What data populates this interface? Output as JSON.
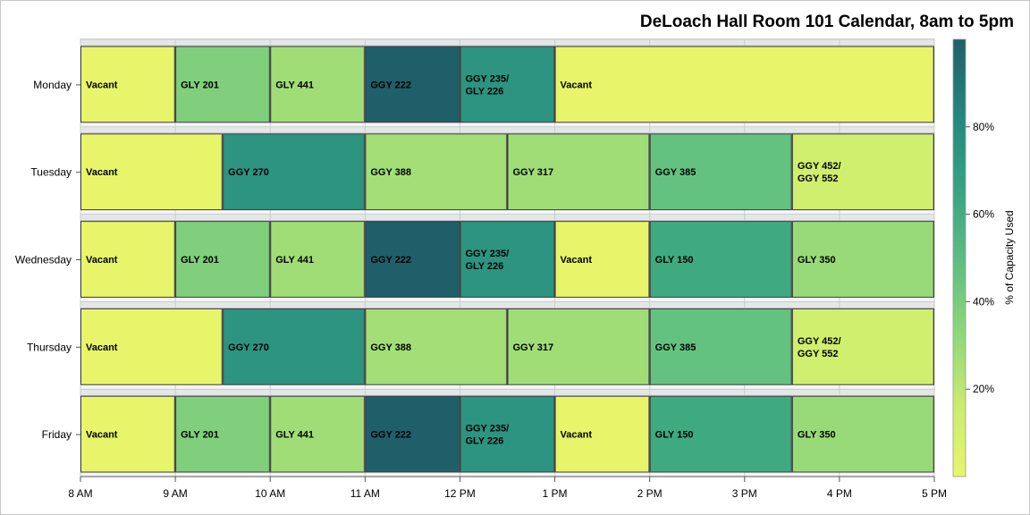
{
  "chart_data": {
    "type": "timeline-heatmap",
    "title": "DeLoach Hall Room 101 Calendar, 8am to 5pm",
    "x_ticks": [
      "8 AM",
      "9 AM",
      "10 AM",
      "11 AM",
      "12 PM",
      "1 PM",
      "2 PM",
      "3 PM",
      "4 PM",
      "5 PM"
    ],
    "x_range_hours": [
      8,
      17
    ],
    "colorbar": {
      "label": "% of Capacity Used",
      "ticks": [
        "20%",
        "40%",
        "60%",
        "80%"
      ],
      "tick_values": [
        20,
        40,
        60,
        80
      ],
      "range": [
        0,
        100
      ],
      "colors": [
        "#e8f56a",
        "#c8ec70",
        "#8dd67a",
        "#5bbd82",
        "#34a282",
        "#23857e",
        "#1f5f6a"
      ]
    },
    "days": [
      {
        "name": "Monday",
        "blocks": [
          {
            "start": 8,
            "end": 9,
            "label": "Vacant",
            "pct": 0
          },
          {
            "start": 9,
            "end": 10,
            "label": "GLY 201",
            "pct": 38
          },
          {
            "start": 10,
            "end": 11,
            "label": "GLY 441",
            "pct": 28
          },
          {
            "start": 11,
            "end": 12,
            "label": "GGY 222",
            "pct": 100
          },
          {
            "start": 12,
            "end": 13,
            "label": "GGY 235/\nGLY 226",
            "pct": 75
          },
          {
            "start": 13,
            "end": 17,
            "label": "Vacant",
            "pct": 0
          }
        ]
      },
      {
        "name": "Tuesday",
        "blocks": [
          {
            "start": 8,
            "end": 9.5,
            "label": "Vacant",
            "pct": 0
          },
          {
            "start": 9.5,
            "end": 11,
            "label": "GGY 270",
            "pct": 75
          },
          {
            "start": 11,
            "end": 12.5,
            "label": "GGY 388",
            "pct": 27
          },
          {
            "start": 12.5,
            "end": 14,
            "label": "GGY 317",
            "pct": 28
          },
          {
            "start": 14,
            "end": 15.5,
            "label": "GGY 385",
            "pct": 47
          },
          {
            "start": 15.5,
            "end": 17,
            "label": "GGY 452/\nGGY 552",
            "pct": 12
          }
        ]
      },
      {
        "name": "Wednesday",
        "blocks": [
          {
            "start": 8,
            "end": 9,
            "label": "Vacant",
            "pct": 0
          },
          {
            "start": 9,
            "end": 10,
            "label": "GLY 201",
            "pct": 38
          },
          {
            "start": 10,
            "end": 11,
            "label": "GLY 441",
            "pct": 28
          },
          {
            "start": 11,
            "end": 12,
            "label": "GGY 222",
            "pct": 100
          },
          {
            "start": 12,
            "end": 13,
            "label": "GGY 235/\nGLY 226",
            "pct": 75
          },
          {
            "start": 13,
            "end": 14,
            "label": "Vacant",
            "pct": 0
          },
          {
            "start": 14,
            "end": 15.5,
            "label": "GLY 150",
            "pct": 62
          },
          {
            "start": 15.5,
            "end": 17,
            "label": "GLY 350",
            "pct": 30
          }
        ]
      },
      {
        "name": "Thursday",
        "blocks": [
          {
            "start": 8,
            "end": 9.5,
            "label": "Vacant",
            "pct": 0
          },
          {
            "start": 9.5,
            "end": 11,
            "label": "GGY 270",
            "pct": 75
          },
          {
            "start": 11,
            "end": 12.5,
            "label": "GGY 388",
            "pct": 27
          },
          {
            "start": 12.5,
            "end": 14,
            "label": "GGY 317",
            "pct": 28
          },
          {
            "start": 14,
            "end": 15.5,
            "label": "GGY 385",
            "pct": 47
          },
          {
            "start": 15.5,
            "end": 17,
            "label": "GGY 452/\nGGY 552",
            "pct": 12
          }
        ]
      },
      {
        "name": "Friday",
        "blocks": [
          {
            "start": 8,
            "end": 9,
            "label": "Vacant",
            "pct": 0
          },
          {
            "start": 9,
            "end": 10,
            "label": "GLY 201",
            "pct": 38
          },
          {
            "start": 10,
            "end": 11,
            "label": "GLY 441",
            "pct": 28
          },
          {
            "start": 11,
            "end": 12,
            "label": "GGY 222",
            "pct": 100
          },
          {
            "start": 12,
            "end": 13,
            "label": "GGY 235/\nGLY 226",
            "pct": 75
          },
          {
            "start": 13,
            "end": 14,
            "label": "Vacant",
            "pct": 0
          },
          {
            "start": 14,
            "end": 15.5,
            "label": "GLY 150",
            "pct": 62
          },
          {
            "start": 15.5,
            "end": 17,
            "label": "GLY 350",
            "pct": 30
          }
        ]
      }
    ]
  }
}
